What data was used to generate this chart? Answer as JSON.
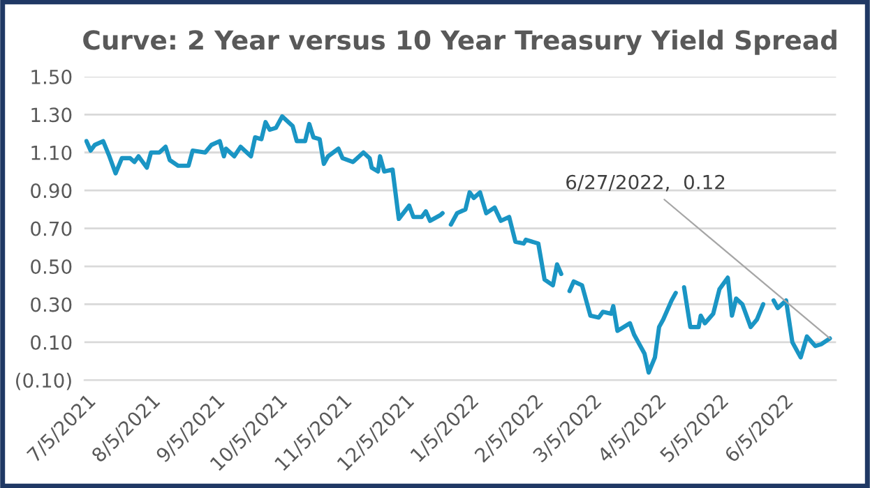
{
  "chart_data": {
    "type": "line",
    "title": "Curve: 2 Year versus 10 Year Treasury Yield Spread",
    "x": [
      "2021-07-05",
      "2021-07-07",
      "2021-07-09",
      "2021-07-13",
      "2021-07-16",
      "2021-07-19",
      "2021-07-22",
      "2021-07-26",
      "2021-07-28",
      "2021-07-30",
      "2021-08-03",
      "2021-08-05",
      "2021-08-09",
      "2021-08-12",
      "2021-08-14",
      "2021-08-18",
      "2021-08-23",
      "2021-08-25",
      "2021-08-31",
      "2021-09-03",
      "2021-09-07",
      "2021-09-09",
      "2021-09-10",
      "2021-09-14",
      "2021-09-17",
      "2021-09-22",
      "2021-09-24",
      "2021-09-27",
      "2021-09-29",
      "2021-10-01",
      "2021-10-04",
      "2021-10-07",
      "2021-10-12",
      "2021-10-14",
      "2021-10-18",
      "2021-10-20",
      "2021-10-22",
      "2021-10-25",
      "2021-10-27",
      "2021-10-29",
      "2021-11-03",
      "2021-11-05",
      "2021-11-10",
      "2021-11-15",
      "2021-11-18",
      "2021-11-19",
      "2021-11-22",
      "2021-11-23",
      "2021-11-25",
      "2021-11-29",
      "2021-12-02",
      "2021-12-07",
      "2021-12-09",
      "2021-12-13",
      "2021-12-15",
      "2021-12-17",
      "2021-12-22",
      "2021-12-23",
      "2021-12-24",
      "2021-12-27",
      "2021-12-28",
      "2021-12-29",
      "2021-12-30",
      "2022-01-03",
      "2022-01-05",
      "2022-01-07",
      "2022-01-10",
      "2022-01-13",
      "2022-01-17",
      "2022-01-20",
      "2022-01-24",
      "2022-01-27",
      "2022-01-31",
      "2022-02-01",
      "2022-02-07",
      "2022-02-10",
      "2022-02-14",
      "2022-02-16",
      "2022-02-18",
      "2022-02-21",
      "2022-02-22",
      "2022-02-24",
      "2022-02-28",
      "2022-03-04",
      "2022-03-08",
      "2022-03-10",
      "2022-03-14",
      "2022-03-15",
      "2022-03-17",
      "2022-03-23",
      "2022-03-25",
      "2022-03-30",
      "2022-04-01",
      "2022-04-04",
      "2022-04-06",
      "2022-04-08",
      "2022-04-12",
      "2022-04-14",
      "2022-04-15",
      "2022-04-18",
      "2022-04-21",
      "2022-04-25",
      "2022-04-26",
      "2022-04-28",
      "2022-05-02",
      "2022-05-05",
      "2022-05-09",
      "2022-05-11",
      "2022-05-13",
      "2022-05-16",
      "2022-05-20",
      "2022-05-23",
      "2022-05-26",
      "2022-05-27",
      "2022-05-31",
      "2022-06-02",
      "2022-06-06",
      "2022-06-09",
      "2022-06-13",
      "2022-06-16",
      "2022-06-20",
      "2022-06-23",
      "2022-06-27"
    ],
    "series": [
      {
        "color": "#1a95c4",
        "values": [
          1.16,
          1.11,
          1.14,
          1.16,
          1.08,
          0.99,
          1.07,
          1.07,
          1.05,
          1.08,
          1.02,
          1.1,
          1.1,
          1.13,
          1.06,
          1.03,
          1.03,
          1.11,
          1.1,
          1.14,
          1.16,
          1.08,
          1.12,
          1.08,
          1.13,
          1.08,
          1.18,
          1.17,
          1.26,
          1.22,
          1.23,
          1.29,
          1.24,
          1.16,
          1.16,
          1.25,
          1.18,
          1.17,
          1.04,
          1.08,
          1.12,
          1.07,
          1.05,
          1.1,
          1.07,
          1.02,
          1.0,
          1.08,
          1.0,
          1.01,
          0.75,
          0.82,
          0.76,
          0.76,
          0.79,
          0.74,
          0.77,
          0.78,
          null,
          0.72,
          0.74,
          0.76,
          0.78,
          0.8,
          0.89,
          0.86,
          0.89,
          0.78,
          0.81,
          0.74,
          0.76,
          0.63,
          0.62,
          0.64,
          0.62,
          0.43,
          0.4,
          0.51,
          0.46,
          null,
          0.37,
          0.42,
          0.4,
          0.24,
          0.23,
          0.26,
          0.25,
          0.29,
          0.16,
          0.2,
          0.14,
          0.04,
          -0.06,
          0.02,
          0.18,
          0.22,
          0.32,
          0.36,
          null,
          0.39,
          0.18,
          0.18,
          0.24,
          0.2,
          0.25,
          0.38,
          0.44,
          0.24,
          0.33,
          0.3,
          0.18,
          0.22,
          0.3,
          null,
          0.32,
          0.28,
          0.32,
          0.1,
          0.02,
          0.13,
          0.08,
          0.09,
          0.12
        ]
      }
    ],
    "xlim": [
      "2021-07-04",
      "2022-06-30"
    ],
    "xticks": [
      {
        "value": "2021-07-05",
        "label": "7/5/2021"
      },
      {
        "value": "2021-08-05",
        "label": "8/5/2021"
      },
      {
        "value": "2021-09-05",
        "label": "9/5/2021"
      },
      {
        "value": "2021-10-05",
        "label": "10/5/2021"
      },
      {
        "value": "2021-11-05",
        "label": "11/5/2021"
      },
      {
        "value": "2021-12-05",
        "label": "12/5/2021"
      },
      {
        "value": "2022-01-05",
        "label": "1/5/2022"
      },
      {
        "value": "2022-02-05",
        "label": "2/5/2022"
      },
      {
        "value": "2022-03-05",
        "label": "3/5/2022"
      },
      {
        "value": "2022-04-05",
        "label": "4/5/2022"
      },
      {
        "value": "2022-05-05",
        "label": "5/5/2022"
      },
      {
        "value": "2022-06-05",
        "label": "6/5/2022"
      }
    ],
    "ylim": [
      -0.1,
      1.5
    ],
    "yticks": [
      {
        "value": -0.1,
        "label": "(0.10)"
      },
      {
        "value": 0.1,
        "label": "0.10"
      },
      {
        "value": 0.3,
        "label": "0.30"
      },
      {
        "value": 0.5,
        "label": "0.50"
      },
      {
        "value": 0.7,
        "label": "0.70"
      },
      {
        "value": 0.9,
        "label": "0.90"
      },
      {
        "value": 1.1,
        "label": "1.10"
      },
      {
        "value": 1.3,
        "label": "1.30"
      },
      {
        "value": 1.5,
        "label": "1.50"
      }
    ],
    "grid": "y",
    "legend": false,
    "annotations": [
      {
        "text": "6/27/2022,  0.12",
        "x": "2022-06-27",
        "y": 0.12
      }
    ]
  }
}
